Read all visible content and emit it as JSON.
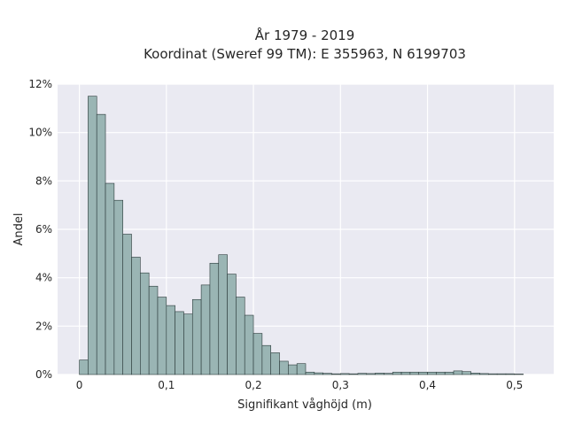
{
  "chart_data": {
    "type": "bar",
    "title": "År 1979 - 2019",
    "subtitle": "Koordinat (Sweref 99 TM): E 355963, N 6199703",
    "xlabel": "Signifikant våghöjd (m)",
    "ylabel": "Andel",
    "xlim": [
      -0.025,
      0.545
    ],
    "ylim": [
      0,
      12
    ],
    "x_ticks": [
      0,
      0.1,
      0.2,
      0.3,
      0.4,
      0.5
    ],
    "x_tick_labels": [
      "0",
      "0,1",
      "0,2",
      "0,3",
      "0,4",
      "0,5"
    ],
    "y_ticks": [
      0,
      2,
      4,
      6,
      8,
      10,
      12
    ],
    "y_tick_labels": [
      "0%",
      "2%",
      "4%",
      "6%",
      "8%",
      "10%",
      "12%"
    ],
    "grid": true,
    "bin_start": 0.0,
    "bin_width": 0.01,
    "values": [
      0.6,
      11.5,
      10.75,
      7.9,
      7.2,
      5.8,
      4.85,
      4.2,
      3.65,
      3.2,
      2.85,
      2.6,
      2.5,
      3.1,
      3.7,
      4.6,
      4.95,
      4.15,
      3.2,
      2.45,
      1.7,
      1.2,
      0.9,
      0.55,
      0.4,
      0.45,
      0.1,
      0.07,
      0.05,
      0.03,
      0.04,
      0.03,
      0.05,
      0.04,
      0.06,
      0.05,
      0.1,
      0.1,
      0.1,
      0.1,
      0.1,
      0.1,
      0.1,
      0.15,
      0.12,
      0.06,
      0.04,
      0.03,
      0.03,
      0.03,
      0.02
    ],
    "colors": {
      "bar_fill": "#9ab5b4",
      "bar_edge": "#2b3a3a",
      "plot_bg": "#eaeaf2",
      "grid": "#ffffff",
      "text": "#262626"
    }
  }
}
